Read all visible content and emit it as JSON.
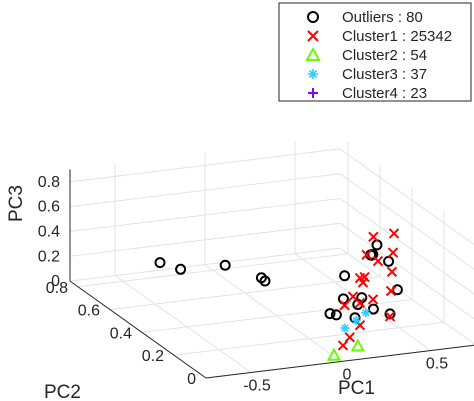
{
  "chart_data": {
    "type": "scatter",
    "projection": "3d",
    "grid": true,
    "legend_position": "top-right",
    "axes": {
      "x": {
        "label": "PC1",
        "ticks": [
          "-0.5",
          "0",
          "0.5"
        ],
        "range": [
          -0.75,
          0.75
        ]
      },
      "y": {
        "label": "PC2",
        "ticks": [
          "0",
          "0.2",
          "0.4",
          "0.6",
          "0.8"
        ],
        "range": [
          0,
          0.85
        ]
      },
      "z": {
        "label": "PC3",
        "ticks": [
          "0",
          "0.2",
          "0.4",
          "0.6",
          "0.8"
        ],
        "range": [
          0,
          0.9
        ]
      }
    },
    "series": [
      {
        "name": "Outliers : 80",
        "marker": "circle",
        "color": "#000000",
        "points": [
          [
            -0.25,
            0.85,
            0.06
          ],
          [
            -0.18,
            0.8,
            0.04
          ],
          [
            0.05,
            0.78,
            0.05
          ],
          [
            0.18,
            0.7,
            0.0
          ],
          [
            0.2,
            0.7,
            -0.03
          ],
          [
            0.25,
            0.35,
            0.02
          ],
          [
            0.28,
            0.3,
            0.18
          ],
          [
            0.34,
            0.36,
            0.3
          ],
          [
            0.36,
            0.3,
            0.12
          ],
          [
            0.4,
            0.32,
            0.15
          ],
          [
            0.48,
            0.35,
            0.45
          ],
          [
            0.52,
            0.4,
            0.4
          ],
          [
            0.55,
            0.42,
            0.38
          ],
          [
            0.58,
            0.3,
            0.2
          ],
          [
            0.6,
            0.45,
            0.42
          ],
          [
            0.62,
            0.4,
            0.33
          ],
          [
            0.33,
            0.4,
            -0.05
          ],
          [
            0.3,
            0.25,
            0.07
          ],
          [
            0.42,
            0.27,
            0.1
          ],
          [
            0.45,
            0.2,
            0.12
          ]
        ]
      },
      {
        "name": "Cluster1 : 25342",
        "marker": "x",
        "color": "#ff0000",
        "points": [
          [
            0.02,
            0.0,
            0.45
          ],
          [
            0.1,
            0.1,
            0.02
          ],
          [
            0.12,
            0.08,
            0.1
          ],
          [
            0.15,
            0.05,
            0.22
          ],
          [
            0.15,
            0.05,
            0.4
          ],
          [
            0.15,
            0.05,
            0.6
          ],
          [
            0.2,
            0.15,
            0.35
          ],
          [
            0.22,
            0.1,
            0.55
          ],
          [
            0.25,
            0.05,
            0.72
          ],
          [
            0.3,
            0.2,
            0.4
          ],
          [
            0.32,
            0.2,
            0.62
          ],
          [
            0.34,
            0.18,
            0.78
          ],
          [
            0.4,
            0.25,
            0.2
          ],
          [
            0.45,
            0.2,
            0.1
          ],
          [
            0.5,
            0.25,
            0.25
          ],
          [
            0.55,
            0.3,
            0.35
          ],
          [
            0.6,
            0.35,
            0.45
          ],
          [
            0.65,
            0.4,
            0.55
          ]
        ]
      },
      {
        "name": "Cluster2 : 54",
        "marker": "triangle",
        "color": "#66ff00",
        "points": [
          [
            0.05,
            0.1,
            -0.05
          ],
          [
            0.2,
            0.12,
            -0.02
          ]
        ]
      },
      {
        "name": "Cluster3 : 37",
        "marker": "asterisk",
        "color": "#33ccff",
        "points": [
          [
            0.2,
            0.2,
            0.05
          ],
          [
            0.28,
            0.22,
            0.08
          ],
          [
            0.36,
            0.25,
            0.1
          ]
        ]
      },
      {
        "name": "Cluster4 : 23",
        "marker": "plus",
        "color": "#8800ff",
        "points": []
      }
    ]
  }
}
